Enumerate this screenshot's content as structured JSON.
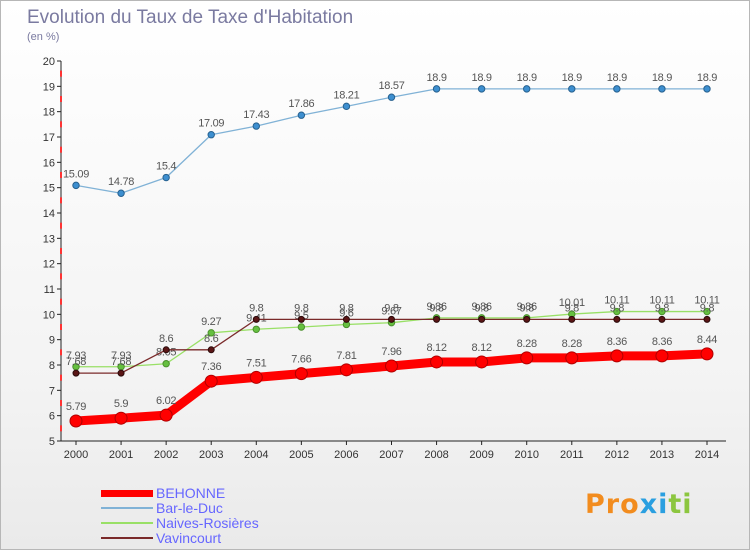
{
  "title": "Evolution du Taux de Taxe d'Habitation",
  "unit": "(en %)",
  "logo": {
    "text": "Proxiti",
    "letters": [
      "P",
      "r",
      "o",
      "x",
      "i",
      "t",
      "i"
    ],
    "colors": [
      "#f28c1e",
      "#f28c1e",
      "#f28c1e",
      "#2a9fe0",
      "#2a9fe0",
      "#8cc63f",
      "#8cc63f"
    ]
  },
  "chart_data": {
    "type": "line",
    "x": [
      "2000",
      "2001",
      "2002",
      "2003",
      "2004",
      "2005",
      "2006",
      "2007",
      "2008",
      "2009",
      "2010",
      "2011",
      "2012",
      "2013",
      "2014"
    ],
    "ylim": [
      5,
      20
    ],
    "yticks": [
      "5",
      "6",
      "7",
      "8",
      "9",
      "10",
      "11",
      "12",
      "13",
      "14",
      "15",
      "16",
      "17",
      "18",
      "19",
      "20"
    ],
    "grid": false,
    "series": [
      {
        "name": "BEHONNE",
        "color": "#ff0000",
        "values": [
          5.79,
          5.9,
          6.02,
          7.36,
          7.51,
          7.66,
          7.81,
          7.96,
          8.12,
          8.12,
          8.28,
          8.28,
          8.36,
          8.36,
          8.44
        ],
        "labels": [
          "5.79",
          "5.9",
          "6.02",
          "7.36",
          "7.51",
          "7.66",
          "7.81",
          "7.96",
          "8.12",
          "8.12",
          "8.28",
          "8.28",
          "8.36",
          "8.36",
          "8.44"
        ]
      },
      {
        "name": "Bar-le-Duc",
        "color": "#80b2d6",
        "values": [
          15.09,
          14.78,
          15.4,
          17.09,
          17.43,
          17.86,
          18.21,
          18.57,
          18.9,
          18.9,
          18.9,
          18.9,
          18.9,
          18.9,
          18.9
        ],
        "labels": [
          "15.09",
          "14.78",
          "15.4",
          "17.09",
          "17.43",
          "17.86",
          "18.21",
          "18.57",
          "18.9",
          "18.9",
          "18.9",
          "18.9",
          "18.9",
          "18.9",
          "18.9"
        ]
      },
      {
        "name": "Naives-Rosières",
        "color": "#99e066",
        "values": [
          7.93,
          7.93,
          8.05,
          9.27,
          9.41,
          9.5,
          9.6,
          9.67,
          9.86,
          9.86,
          9.86,
          10.01,
          10.11,
          10.11,
          10.11
        ],
        "labels": [
          "7.93",
          "7.93",
          "8.05",
          "9.27",
          "9.41",
          "9.5",
          "9.6",
          "9.67",
          "9.86",
          "9.86",
          "9.86",
          "10.01",
          "10.11",
          "10.11",
          "10.11"
        ]
      },
      {
        "name": "Vavincourt",
        "color": "#7a2a2a",
        "values": [
          7.68,
          7.68,
          8.6,
          8.6,
          9.8,
          9.8,
          9.8,
          9.8,
          9.8,
          9.8,
          9.8,
          9.8,
          9.8,
          9.8,
          9.8
        ],
        "labels": [
          "7.68",
          "7.68",
          "8.6",
          "8.6",
          "9.8",
          "9.8",
          "9.8",
          "9.8",
          "9.8",
          "9.8",
          "9.8",
          "9.8",
          "9.8",
          "9.8",
          "9.8"
        ]
      }
    ]
  }
}
